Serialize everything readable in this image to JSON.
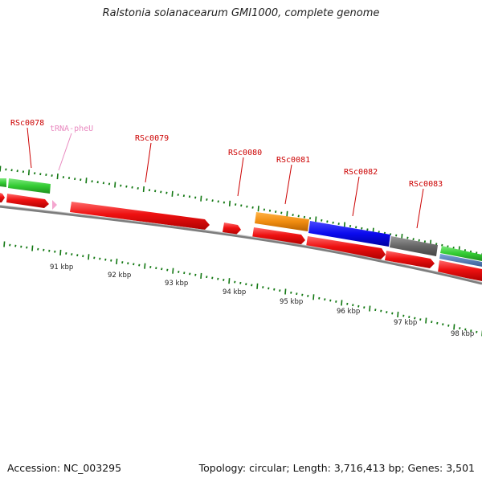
{
  "title": "Ralstonia solanacearum GMI1000, complete genome",
  "footer": {
    "accession": "Accession: NC_003295",
    "summary": "Topology: circular; Length: 3,716,413 bp; Genes: 3,501"
  },
  "gene_labels": [
    {
      "text": "RSc0078",
      "color": "#cc0000"
    },
    {
      "text": "tRNA-pheU",
      "color": "#e98ac0"
    },
    {
      "text": "RSc0079",
      "color": "#cc0000"
    },
    {
      "text": "RSc0080",
      "color": "#cc0000"
    },
    {
      "text": "RSc0081",
      "color": "#cc0000"
    },
    {
      "text": "RSc0082",
      "color": "#cc0000"
    },
    {
      "text": "RSc0083",
      "color": "#cc0000"
    }
  ],
  "scale_labels": [
    "91 kbp",
    "92 kbp",
    "93 kbp",
    "94 kbp",
    "95 kbp",
    "96 kbp",
    "97 kbp",
    "98 kbp"
  ],
  "colors": {
    "cds": "#ee1111",
    "trna": "#f4a6cf",
    "green_feature": "#33cc33",
    "orange_feature": "#f08c10",
    "blue_feature": "#0a0aee",
    "gray_feature": "#666666",
    "steelblue_feature": "#4a78b8",
    "backbone": "#7d7d7d",
    "tick": "#117711"
  }
}
